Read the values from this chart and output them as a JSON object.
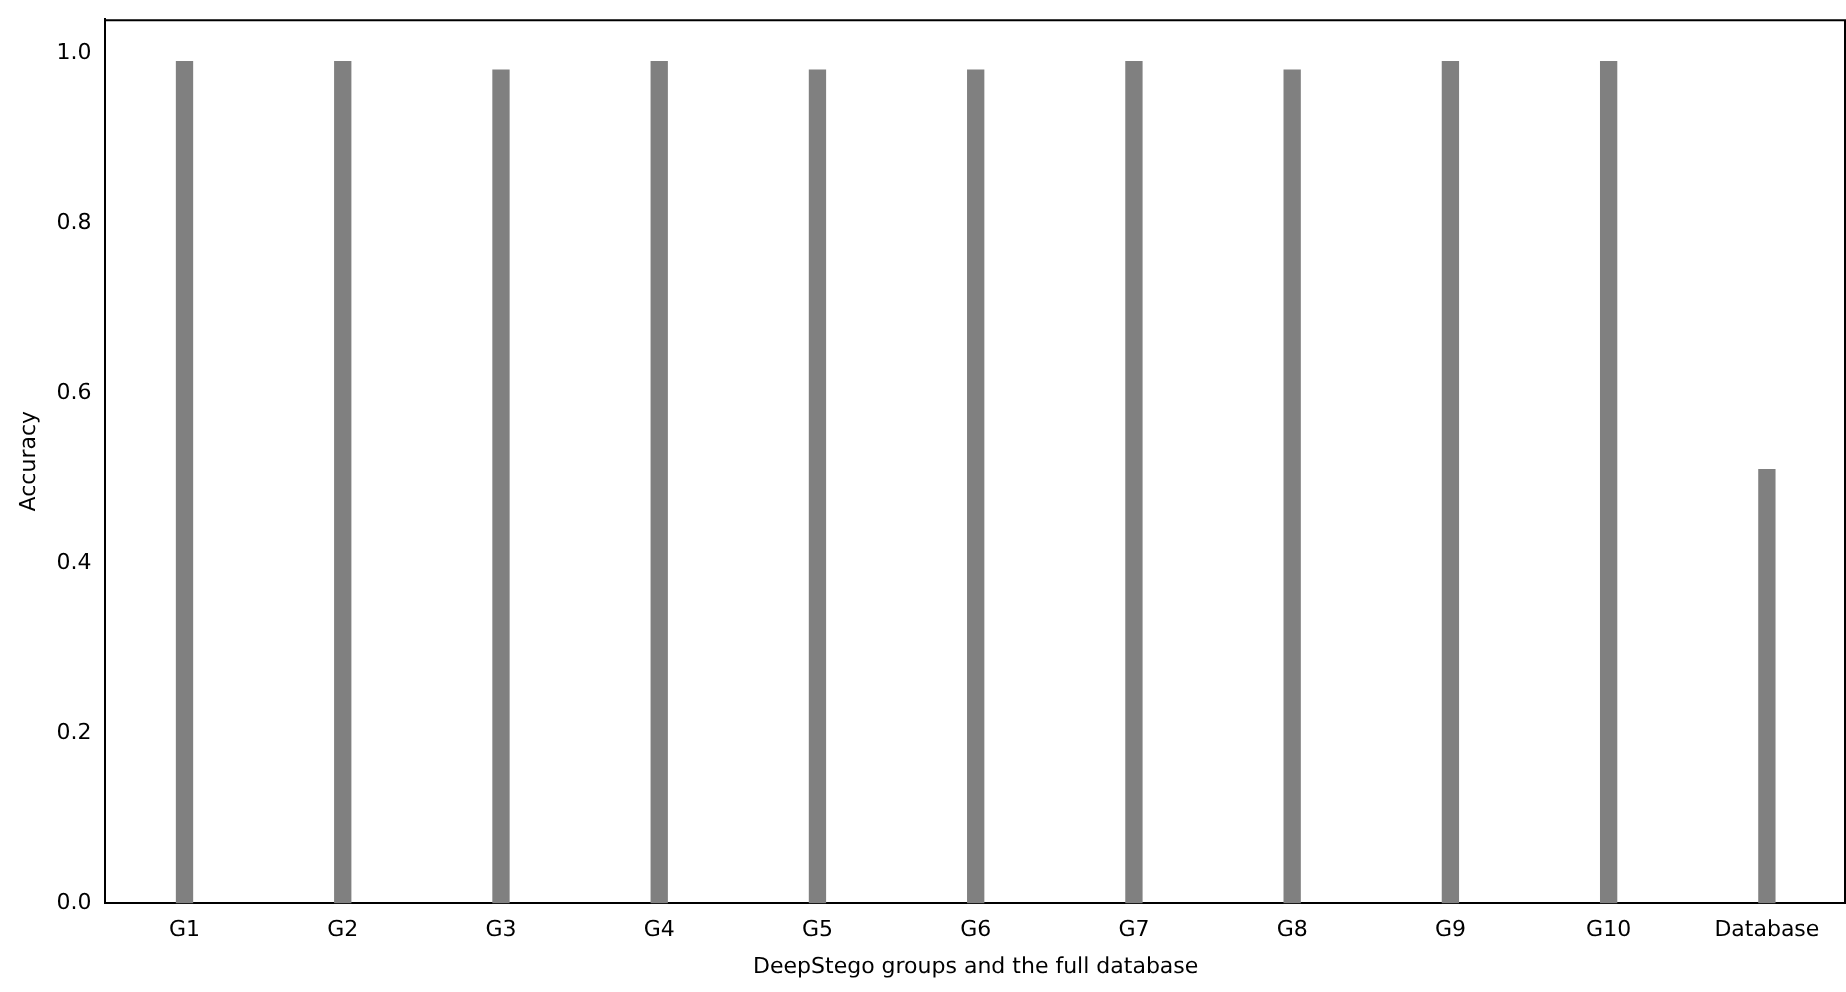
{
  "chart_data": {
    "type": "bar",
    "xlabel": "DeepStego groups and the full database",
    "ylabel": "Accuracy",
    "categories": [
      "G1",
      "G2",
      "G3",
      "G4",
      "G5",
      "G6",
      "G7",
      "G8",
      "G9",
      "G10",
      "Database"
    ],
    "values": [
      0.99,
      0.99,
      0.98,
      0.99,
      0.98,
      0.98,
      0.99,
      0.98,
      0.99,
      0.99,
      0.51
    ],
    "color": "#808080",
    "ylim": [
      0,
      1.04
    ],
    "yticks": [
      {
        "value": 0,
        "label": "0.0"
      },
      {
        "value": 0.2,
        "label": "0.2"
      },
      {
        "value": 0.4,
        "label": "0.4"
      },
      {
        "value": 0.6,
        "label": "0.6"
      },
      {
        "value": 0.8,
        "label": "0.8"
      },
      {
        "value": 1,
        "label": "1.0"
      }
    ],
    "grid": false,
    "legend": false
  }
}
